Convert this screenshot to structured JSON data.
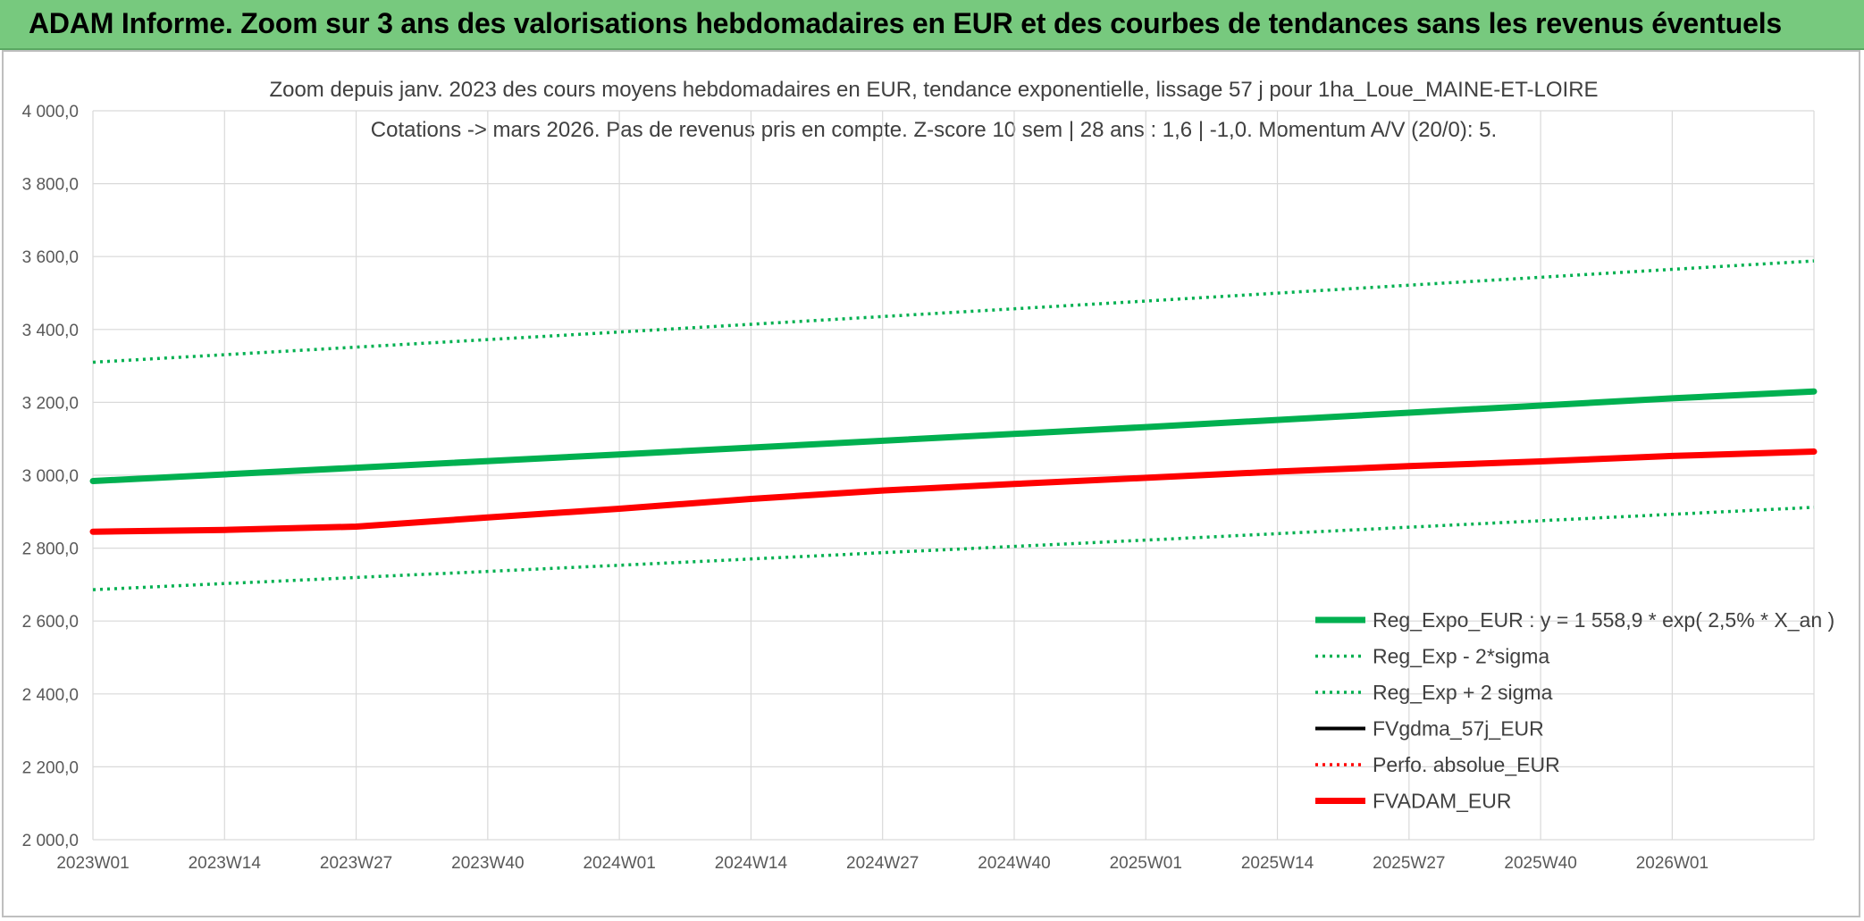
{
  "banner": {
    "title": "ADAM Informe. Zoom sur 3 ans des valorisations hebdomadaires en EUR et des courbes de tendances sans les revenus éventuels"
  },
  "chart_data": {
    "type": "line",
    "title": "Zoom depuis janv. 2023 des cours moyens hebdomadaires en EUR, tendance exponentielle, lissage 57 j pour 1ha_Loue_MAINE-ET-LOIRE",
    "subtitle": "Cotations -> mars 2026. Pas de revenus pris en compte. Z-score 10 sem | 28 ans : 1,6 | -1,0. Momentum A/V (20/0): 5.",
    "xlabel": "",
    "ylabel": "",
    "ylim": [
      2000,
      4000
    ],
    "y_ticks": [
      2000,
      2200,
      2400,
      2600,
      2800,
      3000,
      3200,
      3400,
      3600,
      3800,
      4000
    ],
    "y_tick_labels": [
      "2 000,0",
      "2 200,0",
      "2 400,0",
      "2 600,0",
      "2 800,0",
      "3 000,0",
      "3 200,0",
      "3 400,0",
      "3 600,0",
      "3 800,0",
      "4 000,0"
    ],
    "x_tick_labels": [
      "2023W01",
      "2023W14",
      "2023W27",
      "2023W40",
      "2024W01",
      "2024W14",
      "2024W27",
      "2024W40",
      "2025W01",
      "2025W14",
      "2025W27",
      "2025W40",
      "2026W01"
    ],
    "x_tick_index": [
      0,
      13,
      26,
      39,
      52,
      65,
      78,
      91,
      104,
      117,
      130,
      143,
      156
    ],
    "x_count": 171,
    "grid": true,
    "legend_position": "bottom-right",
    "series": [
      {
        "name": "Reg_Expo_EUR : y = 1 558,9 * exp( 2,5% *  X_an )",
        "color": "#00b050",
        "style": "solid-thick",
        "points": [
          [
            0,
            2984
          ],
          [
            52,
            3057
          ],
          [
            104,
            3132
          ],
          [
            156,
            3211
          ],
          [
            170,
            3230
          ]
        ]
      },
      {
        "name": "Reg_Exp - 2*sigma",
        "color": "#00b050",
        "style": "dotted",
        "points": [
          [
            0,
            2686
          ],
          [
            52,
            2753
          ],
          [
            104,
            2822
          ],
          [
            156,
            2893
          ],
          [
            170,
            2912
          ]
        ]
      },
      {
        "name": "Reg_Exp + 2 sigma",
        "color": "#00b050",
        "style": "dotted",
        "points": [
          [
            0,
            3310
          ],
          [
            52,
            3393
          ],
          [
            104,
            3478
          ],
          [
            156,
            3565
          ],
          [
            170,
            3588
          ]
        ]
      },
      {
        "name": "FVgdma_57j_EUR",
        "color": "#000000",
        "style": "solid",
        "points": [
          [
            0,
            2845
          ],
          [
            13,
            2851
          ],
          [
            26,
            2861
          ],
          [
            39,
            2884
          ],
          [
            52,
            2908
          ],
          [
            65,
            2935
          ],
          [
            78,
            2958
          ],
          [
            91,
            2976
          ],
          [
            104,
            2993
          ],
          [
            117,
            3010
          ],
          [
            130,
            3025
          ],
          [
            143,
            3038
          ],
          [
            156,
            3053
          ],
          [
            170,
            3065
          ]
        ]
      },
      {
        "name": "Perfo. absolue_EUR",
        "color": "#ff0000",
        "style": "dotted",
        "points": [
          [
            0,
            2845
          ],
          [
            13,
            2851
          ],
          [
            26,
            2861
          ],
          [
            39,
            2884
          ],
          [
            52,
            2908
          ],
          [
            65,
            2935
          ],
          [
            78,
            2958
          ],
          [
            91,
            2976
          ],
          [
            104,
            2993
          ],
          [
            117,
            3010
          ],
          [
            130,
            3025
          ],
          [
            143,
            3038
          ],
          [
            156,
            3053
          ],
          [
            170,
            3065
          ]
        ]
      },
      {
        "name": "FVADAM_EUR",
        "color": "#ff0000",
        "style": "solid-thick",
        "points": [
          [
            0,
            2845
          ],
          [
            13,
            2850
          ],
          [
            26,
            2859
          ],
          [
            39,
            2884
          ],
          [
            52,
            2908
          ],
          [
            65,
            2935
          ],
          [
            78,
            2958
          ],
          [
            91,
            2976
          ],
          [
            104,
            2993
          ],
          [
            117,
            3010
          ],
          [
            130,
            3025
          ],
          [
            143,
            3038
          ],
          [
            156,
            3053
          ],
          [
            170,
            3065
          ]
        ]
      }
    ]
  }
}
